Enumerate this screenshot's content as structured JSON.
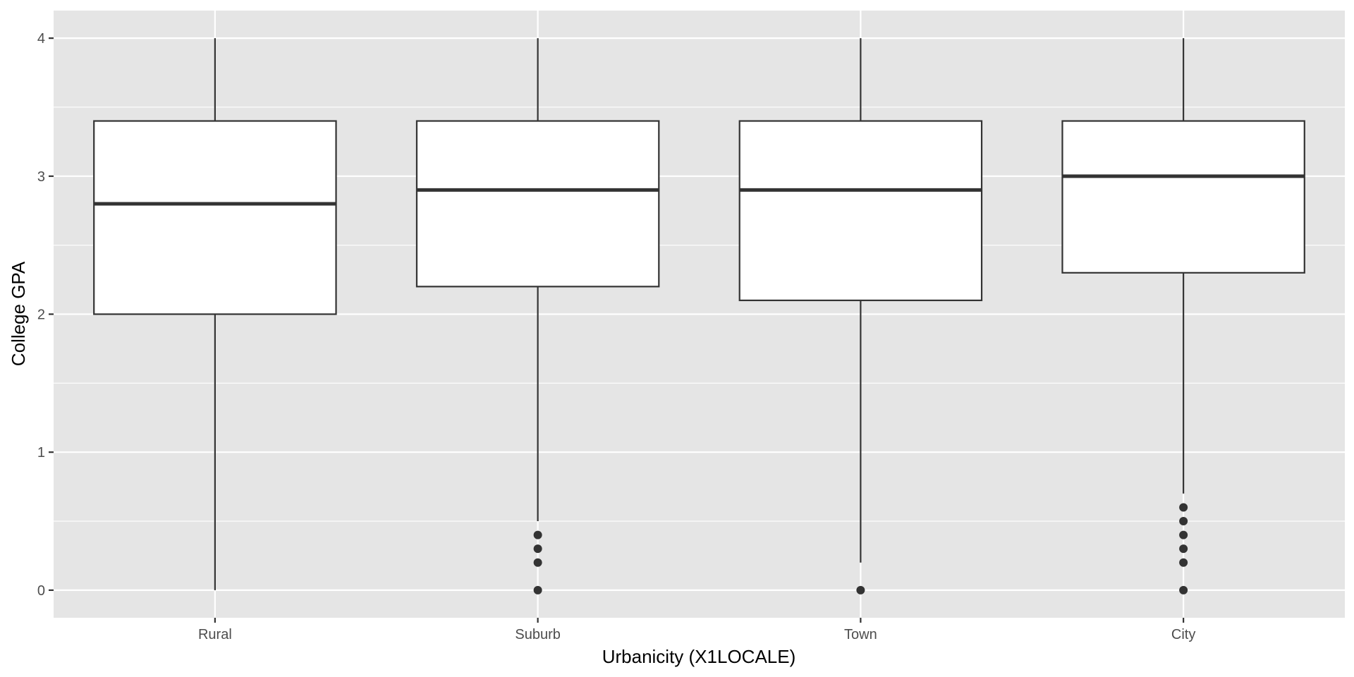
{
  "chart_data": {
    "type": "boxplot",
    "xlabel": "Urbanicity (X1LOCALE)",
    "ylabel": "College GPA",
    "categories": [
      "Rural",
      "Suburb",
      "Town",
      "City"
    ],
    "ylim": [
      -0.2,
      4.2
    ],
    "yticks": [
      0,
      1,
      2,
      3,
      4
    ],
    "grid": true,
    "boxes": [
      {
        "category": "Rural",
        "whisker_low": 0.0,
        "q1": 2.0,
        "median": 2.8,
        "q3": 3.4,
        "whisker_high": 4.0,
        "outliers": []
      },
      {
        "category": "Suburb",
        "whisker_low": 0.5,
        "q1": 2.2,
        "median": 2.9,
        "q3": 3.4,
        "whisker_high": 4.0,
        "outliers": [
          0.0,
          0.2,
          0.3,
          0.4
        ]
      },
      {
        "category": "Town",
        "whisker_low": 0.2,
        "q1": 2.1,
        "median": 2.9,
        "q3": 3.4,
        "whisker_high": 4.0,
        "outliers": [
          0.0
        ]
      },
      {
        "category": "City",
        "whisker_low": 0.7,
        "q1": 2.3,
        "median": 3.0,
        "q3": 3.4,
        "whisker_high": 4.0,
        "outliers": [
          0.0,
          0.2,
          0.3,
          0.4,
          0.5,
          0.6
        ]
      }
    ],
    "colors": {
      "panel_background": "#e5e5e5",
      "grid_line": "#ffffff",
      "box_fill": "#ffffff",
      "box_stroke": "#333333",
      "outlier": "#333333"
    }
  }
}
